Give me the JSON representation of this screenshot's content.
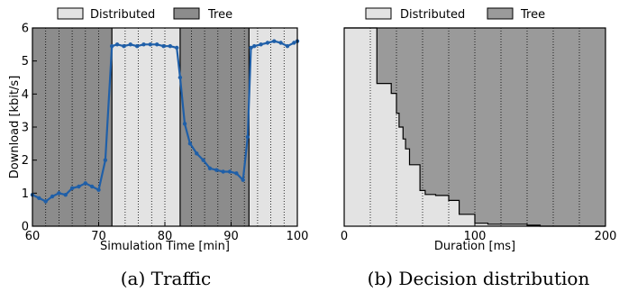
{
  "chart_data": [
    {
      "type": "line",
      "caption": "(a) Traffic",
      "xlabel": "Simulation Time [min]",
      "ylabel": "Download [kbit/s]",
      "xlim": [
        60,
        100
      ],
      "ylim": [
        0,
        6
      ],
      "xticks": [
        "60",
        "70",
        "80",
        "90",
        "100"
      ],
      "yticks": [
        "0",
        "1",
        "2",
        "3",
        "4",
        "5",
        "6"
      ],
      "legend": {
        "placement": "top",
        "entries": [
          {
            "label": "Distributed",
            "color": "#e3e3e3"
          },
          {
            "label": "Tree",
            "color": "#8c8c8c"
          }
        ]
      },
      "background_regions": [
        {
          "mode": "Tree",
          "from": 60,
          "to": 72
        },
        {
          "mode": "Distributed",
          "from": 72,
          "to": 82.3
        },
        {
          "mode": "Tree",
          "from": 82.3,
          "to": 92.7
        },
        {
          "mode": "Distributed",
          "from": 92.7,
          "to": 100
        }
      ],
      "line_color": "#1f5fa8",
      "series": [
        {
          "x": [
            60,
            61,
            62,
            63,
            64,
            65,
            66,
            67,
            68,
            69,
            70,
            71,
            72,
            72.8,
            73.8,
            74.8,
            75.8,
            76.8,
            77.8,
            78.8,
            79.8,
            80.8,
            81.8,
            82.3,
            83.0,
            83.8,
            84.8,
            85.8,
            86.8,
            87.8,
            88.8,
            89.8,
            90.8,
            91.8,
            92.5,
            93.0,
            93.5,
            94.5,
            95.5,
            96.5,
            97.5,
            98.5,
            99.5,
            100
          ],
          "y": [
            0.95,
            0.85,
            0.75,
            0.9,
            1.0,
            0.95,
            1.15,
            1.2,
            1.3,
            1.2,
            1.1,
            2.0,
            5.45,
            5.5,
            5.45,
            5.5,
            5.45,
            5.5,
            5.5,
            5.5,
            5.45,
            5.45,
            5.4,
            4.5,
            3.1,
            2.5,
            2.2,
            2.0,
            1.75,
            1.7,
            1.65,
            1.65,
            1.6,
            1.4,
            2.7,
            5.4,
            5.45,
            5.5,
            5.55,
            5.6,
            5.55,
            5.45,
            5.55,
            5.6
          ]
        }
      ]
    },
    {
      "type": "area",
      "caption": "(b) Decision distribution",
      "xlabel": "Duration [ms]",
      "ylabel": "",
      "xlim": [
        0,
        200
      ],
      "ylim": [
        0,
        1
      ],
      "xticks": [
        "0",
        "100",
        "200"
      ],
      "legend": {
        "placement": "top",
        "entries": [
          {
            "label": "Distributed",
            "color": "#e3e3e3"
          },
          {
            "label": "Tree",
            "color": "#9a9a9a"
          }
        ]
      },
      "boundary": {
        "x": [
          0,
          25,
          25,
          36,
          36,
          40,
          40,
          42,
          42,
          45,
          45,
          47,
          47,
          50,
          50,
          58,
          58,
          62,
          62,
          70,
          70,
          80,
          80,
          88,
          88,
          100,
          100,
          110,
          110,
          140,
          140,
          150,
          150,
          200
        ],
        "y": [
          1.0,
          1.0,
          0.72,
          0.72,
          0.67,
          0.67,
          0.57,
          0.57,
          0.5,
          0.5,
          0.44,
          0.44,
          0.39,
          0.39,
          0.31,
          0.31,
          0.18,
          0.18,
          0.16,
          0.16,
          0.155,
          0.155,
          0.13,
          0.13,
          0.06,
          0.06,
          0.015,
          0.015,
          0.01,
          0.01,
          0.005,
          0.005,
          0.0,
          0.0
        ]
      }
    }
  ]
}
